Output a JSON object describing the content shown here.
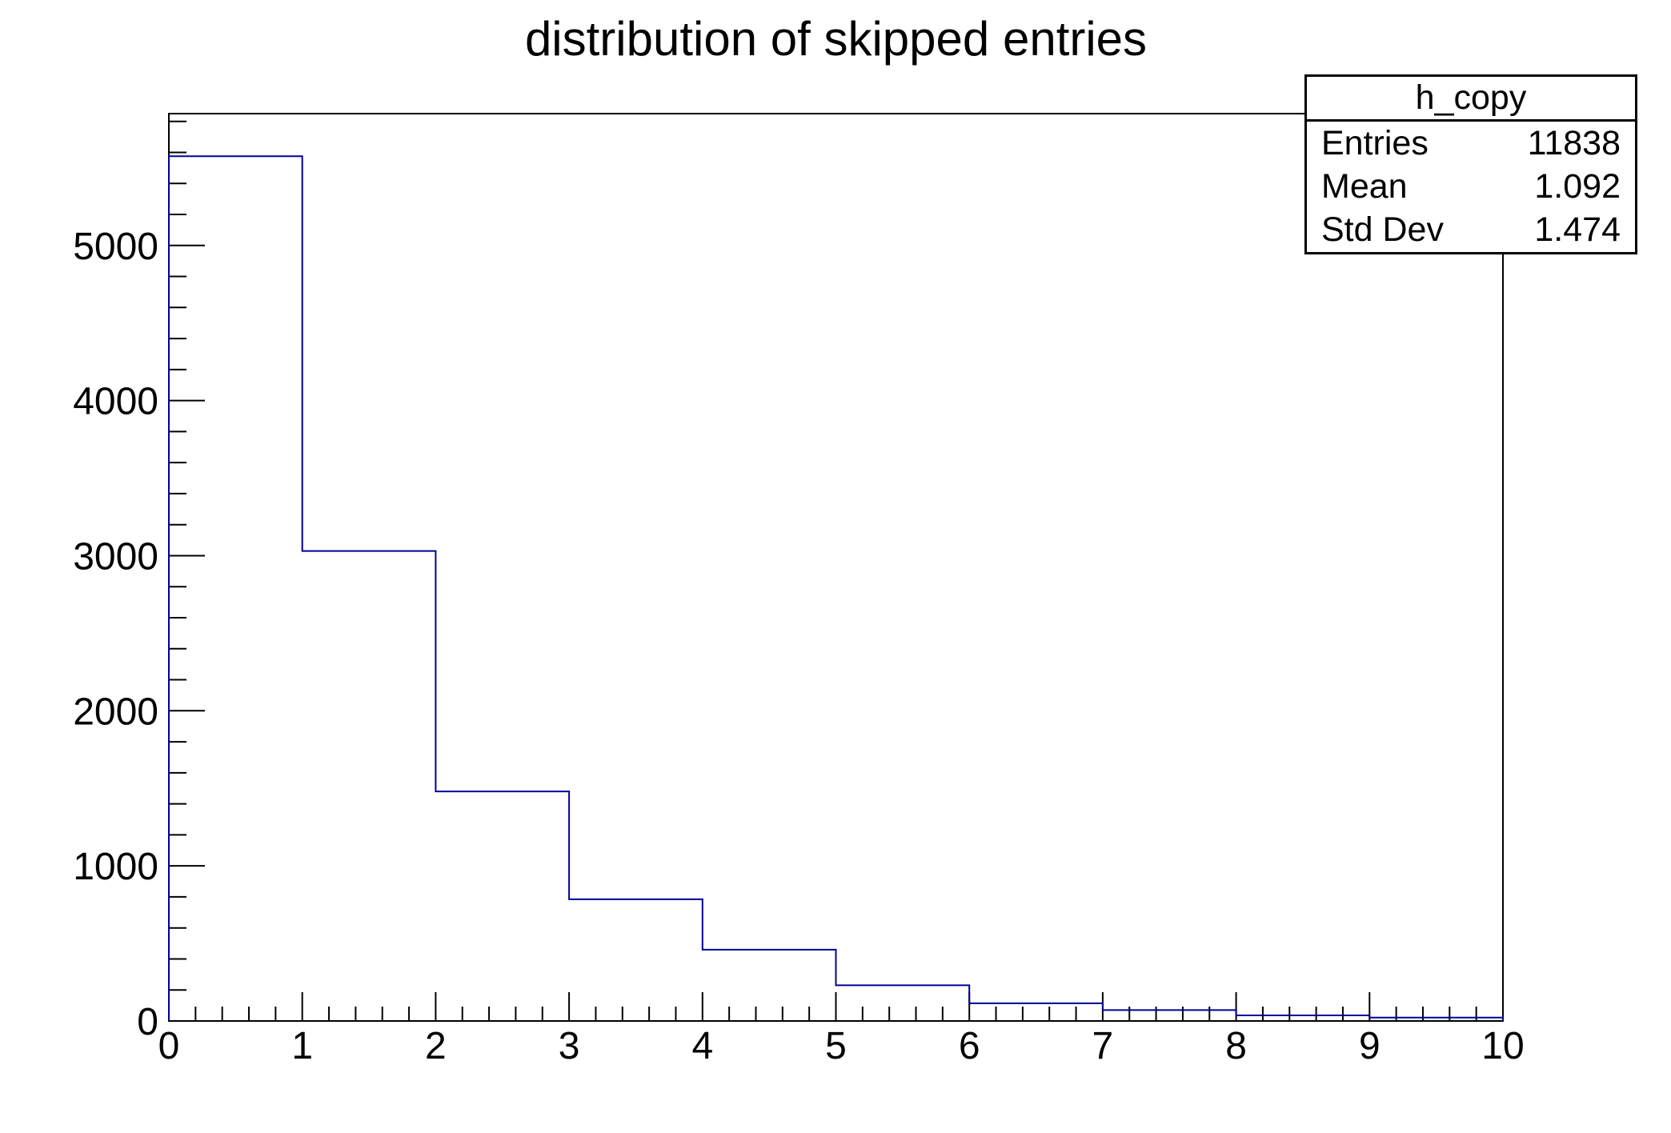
{
  "title": "distribution of skipped entries",
  "stats_box": {
    "title": "h_copy",
    "rows": [
      {
        "label": "Entries",
        "value": "11838"
      },
      {
        "label": "Mean",
        "value": "1.092"
      },
      {
        "label": "Std Dev",
        "value": "1.474"
      }
    ]
  },
  "chart_data": {
    "type": "bar",
    "subtype": "step-histogram",
    "histogram_name": "h_copy",
    "title": "distribution of skipped entries",
    "xlabel": "",
    "ylabel": "",
    "bin_edges": [
      0,
      1,
      2,
      3,
      4,
      5,
      6,
      7,
      8,
      9,
      10
    ],
    "values": [
      5575,
      3030,
      1480,
      785,
      460,
      230,
      114,
      70,
      36,
      22
    ],
    "xlim": [
      0,
      10
    ],
    "ylim": [
      0,
      5850
    ],
    "x_major_ticks": [
      0,
      1,
      2,
      3,
      4,
      5,
      6,
      7,
      8,
      9,
      10
    ],
    "x_tick_labels": [
      "0",
      "1",
      "2",
      "3",
      "4",
      "5",
      "6",
      "7",
      "8",
      "9",
      "10"
    ],
    "x_minor_step": 0.2,
    "y_major_ticks": [
      0,
      1000,
      2000,
      3000,
      4000,
      5000
    ],
    "y_tick_labels": [
      "0",
      "1000",
      "2000",
      "3000",
      "4000",
      "5000"
    ],
    "y_minor_step": 200,
    "grid": false,
    "legend": "none",
    "line_color": "#000099",
    "axis_color": "#000000",
    "background_color": "#ffffff",
    "stats": {
      "entries": 11838,
      "mean": 1.092,
      "std_dev": 1.474
    }
  }
}
